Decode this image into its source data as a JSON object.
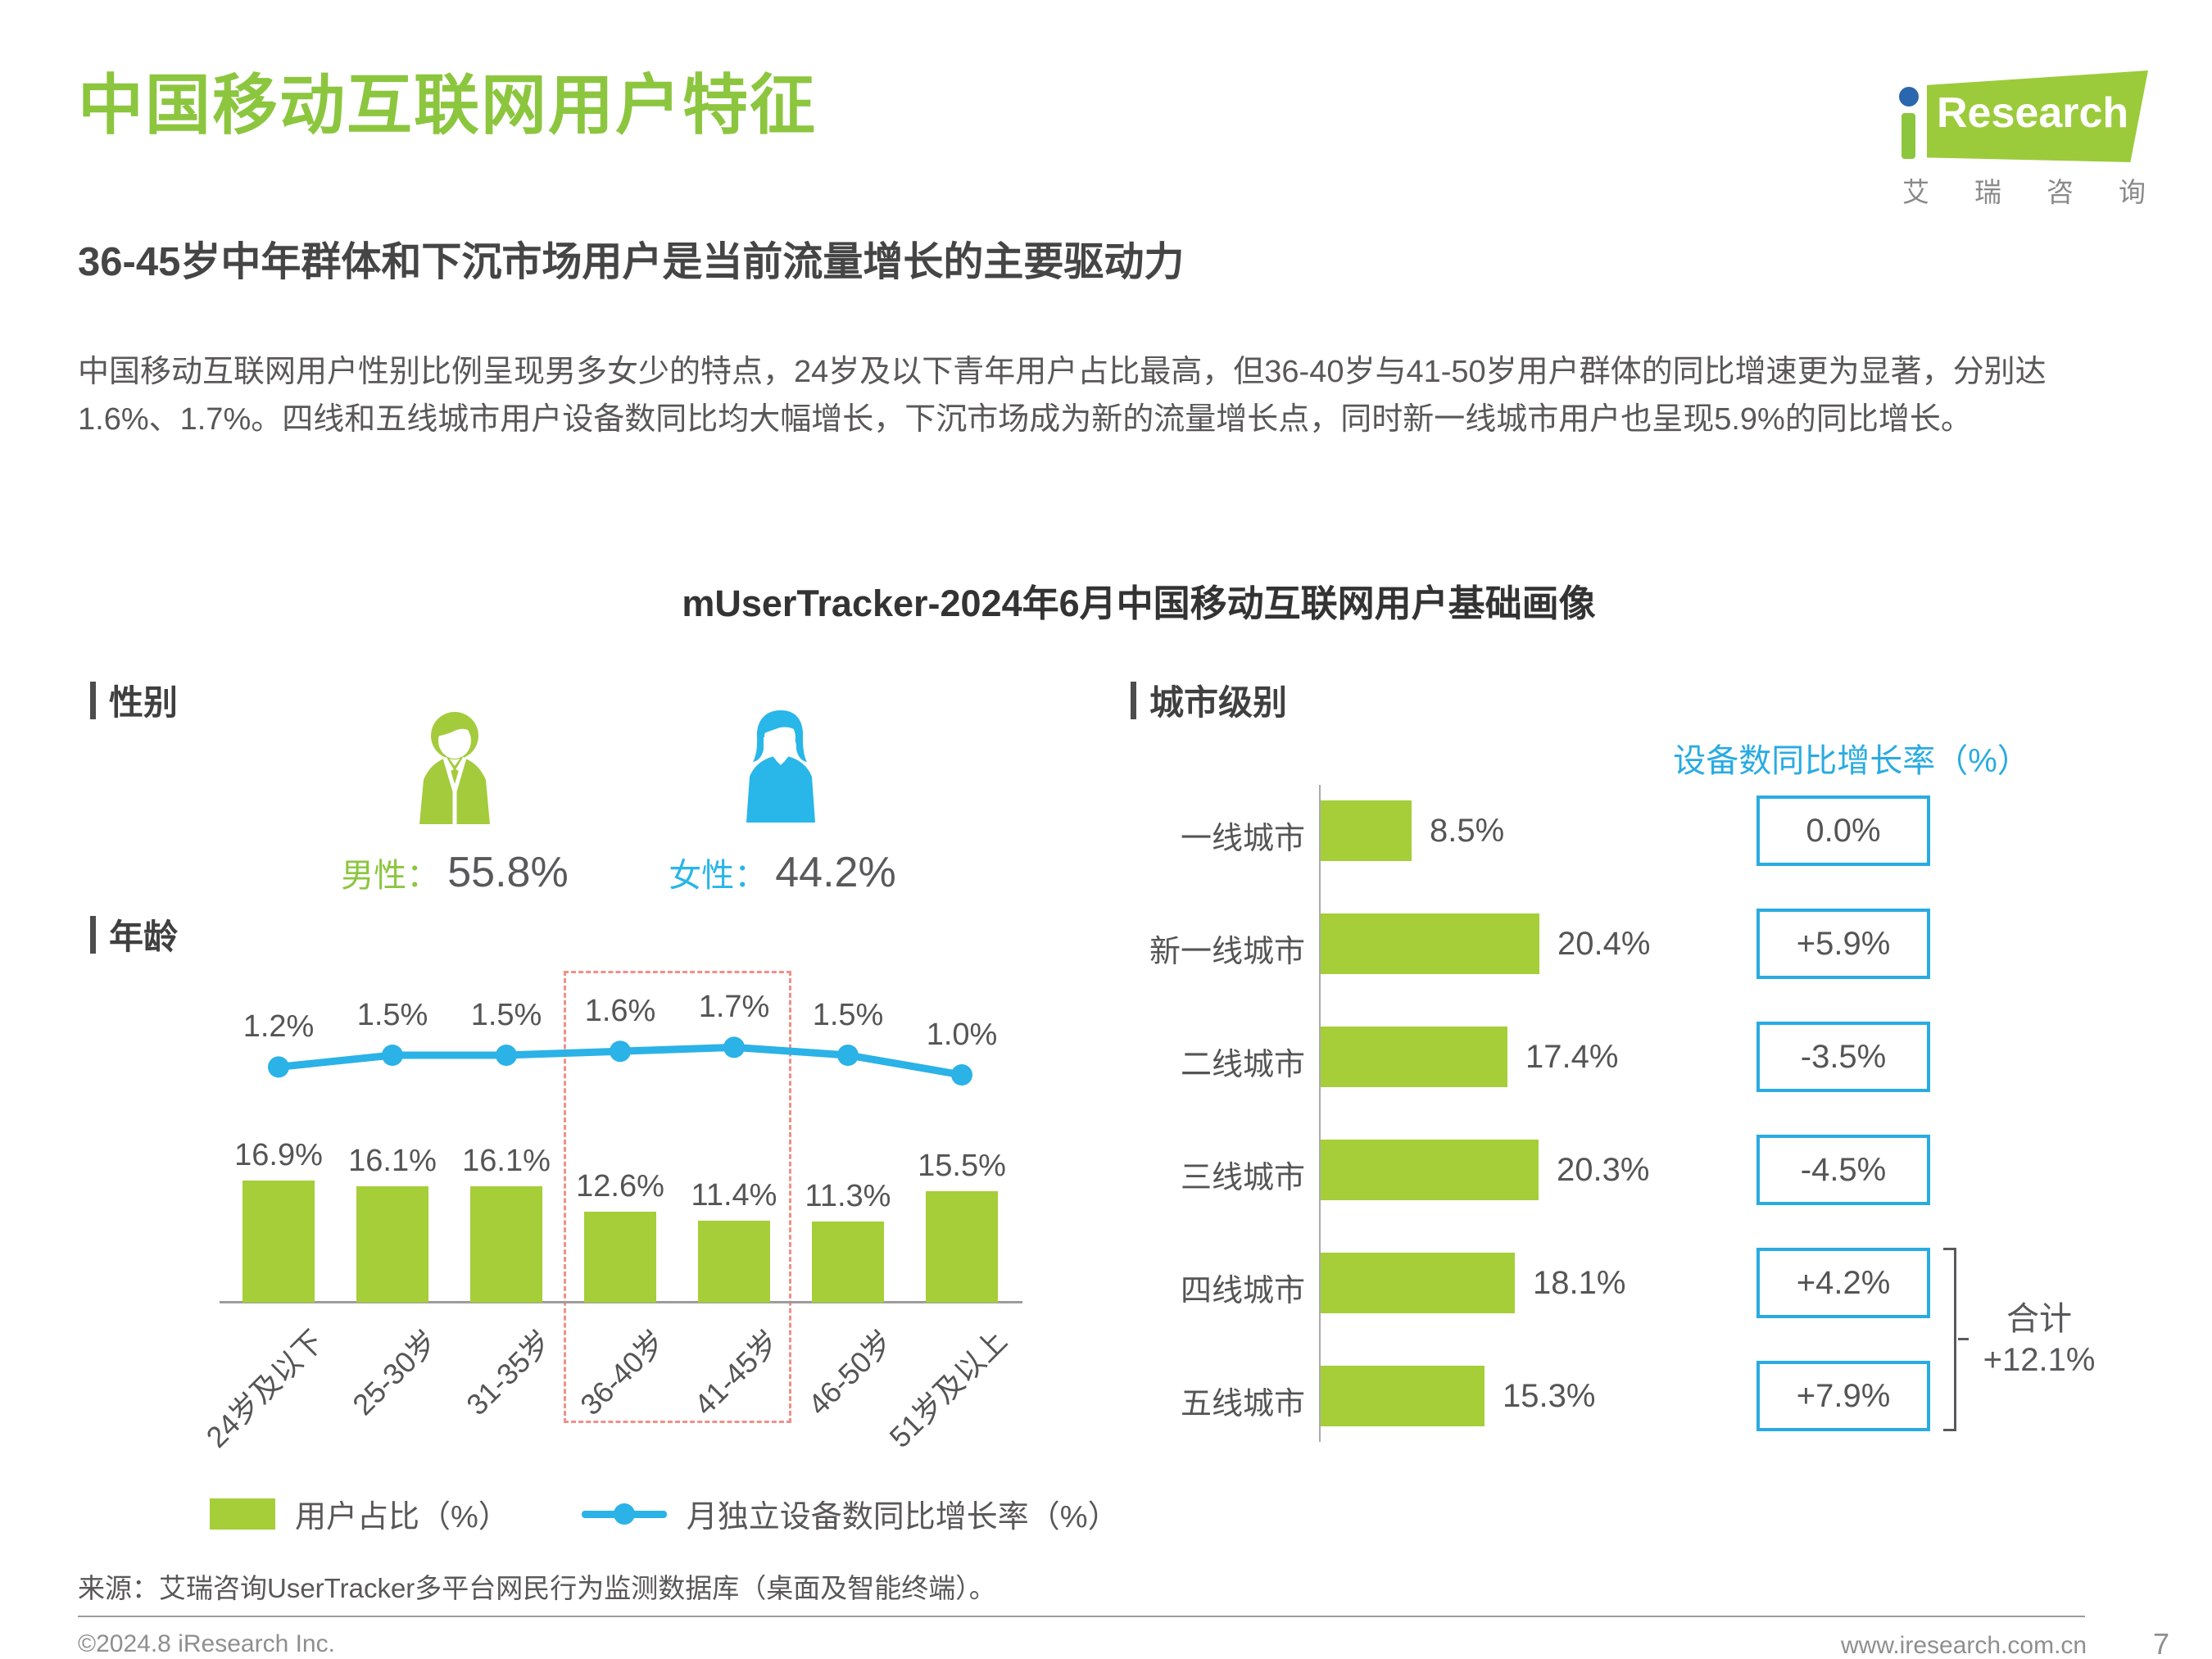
{
  "page": {
    "title": "中国移动互联网用户特征",
    "subtitle": "36-45岁中年群体和下沉市场用户是当前流量增长的主要驱动力",
    "body_text": "中国移动互联网用户性别比例呈现男多女少的特点，24岁及以下青年用户占比最高，但36-40岁与41-50岁用户群体的同比增速更为显著，分别达1.6%、1.7%。四线和五线城市用户设备数同比均大幅增长，下沉市场成为新的流量增长点，同时新一线城市用户也呈现5.9%的同比增长。",
    "chart_title": "mUserTracker-2024年6月中国移动互联网用户基础画像",
    "source": "来源：艾瑞咨询UserTracker多平台网民行为监测数据库（桌面及智能终端）。",
    "footer_left": "©2024.8 iResearch Inc.",
    "footer_right": "www.iresearch.com.cn",
    "page_number": "7"
  },
  "logo": {
    "brand": "Research",
    "brand_cn": "艾瑞咨询"
  },
  "sections": {
    "gender": "性别",
    "age": "年龄",
    "city": "城市级别"
  },
  "gender": {
    "male_label": "男性：",
    "male_value": "55.8%",
    "female_label": "女性：",
    "female_value": "44.2%"
  },
  "colors": {
    "title_green": "#8CC63F",
    "bar_green": "#A5CE39",
    "blue": "#29ABE2",
    "line_blue": "#2BB2E7",
    "text_dark": "#595757",
    "highlight_dash": "#F29088"
  },
  "chart_data": [
    {
      "name": "age_distribution",
      "type": "bar",
      "categories": [
        "24岁及以下",
        "25-30岁",
        "31-35岁",
        "36-40岁",
        "41-45岁",
        "46-50岁",
        "51岁及以上"
      ],
      "series": [
        {
          "name": "用户占比（%）",
          "type": "bar",
          "values": [
            16.9,
            16.1,
            16.1,
            12.6,
            11.4,
            11.3,
            15.5
          ]
        },
        {
          "name": "月独立设备数同比增长率（%）",
          "type": "line",
          "values": [
            1.2,
            1.5,
            1.5,
            1.6,
            1.7,
            1.5,
            1.0
          ]
        }
      ],
      "legend": [
        "用户占比（%）",
        "月独立设备数同比增长率（%）"
      ],
      "highlight_categories": [
        "36-40岁",
        "41-45岁"
      ],
      "grid": false
    },
    {
      "name": "city_tier",
      "type": "bar",
      "categories": [
        "一线城市",
        "新一线城市",
        "二线城市",
        "三线城市",
        "四线城市",
        "五线城市"
      ],
      "values": [
        8.5,
        20.4,
        17.4,
        20.3,
        18.1,
        15.3
      ],
      "growth_header": "设备数同比增长率（%）",
      "growth": [
        "0.0%",
        "+5.9%",
        "-3.5%",
        "-4.5%",
        "+4.2%",
        "+7.9%"
      ],
      "total": {
        "label": "合计",
        "value": "+12.1%",
        "applies_to": [
          "四线城市",
          "五线城市"
        ]
      }
    }
  ]
}
